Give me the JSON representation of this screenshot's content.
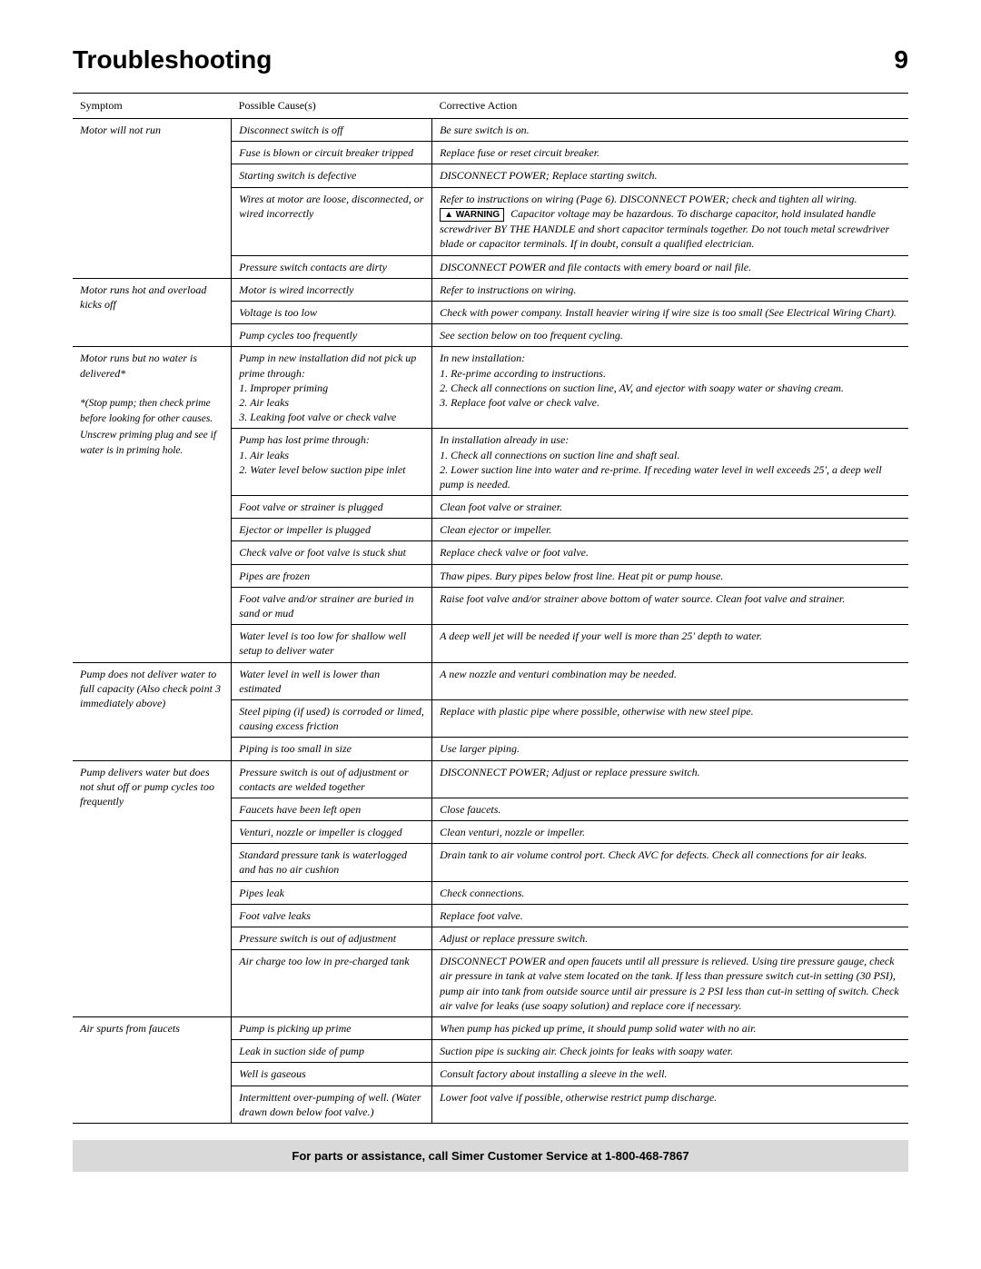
{
  "page": {
    "title": "Troubleshooting",
    "number": "9"
  },
  "headers": {
    "symptom": "Symptom",
    "cause": "Possible Cause(s)",
    "action": "Corrective Action"
  },
  "warning_label": "WARNING",
  "footer": "For parts or assistance, call Simer Customer Service at 1-800-468-7867",
  "s1": {
    "symptom": "Motor will not run",
    "r1": {
      "cause": "Disconnect switch is off",
      "action": "Be sure switch is on."
    },
    "r2": {
      "cause": "Fuse is blown or circuit breaker tripped",
      "action": "Replace fuse or reset circuit breaker."
    },
    "r3": {
      "cause": "Starting switch is defective",
      "action": "DISCONNECT POWER; Replace starting switch."
    },
    "r4": {
      "cause": "Wires at motor are loose, disconnected, or wired incorrectly",
      "action_a": "Refer to instructions on wiring (Page 6). DISCONNECT POWER; check and tighten all wiring.",
      "action_b": "Capacitor voltage may be hazardous. To discharge capacitor, hold insulated handle screwdriver BY THE HANDLE and short capacitor terminals together. Do not touch metal screwdriver blade or capacitor terminals. If in doubt, consult a qualified electrician."
    },
    "r5": {
      "cause": "Pressure switch contacts are dirty",
      "action": "DISCONNECT POWER and file contacts with emery board or nail file."
    }
  },
  "s2": {
    "symptom": "Motor runs hot and overload kicks off",
    "r1": {
      "cause": "Motor is wired incorrectly",
      "action": "Refer to instructions on wiring."
    },
    "r2": {
      "cause": "Voltage is too low",
      "action": "Check with power company. Install heavier wiring if wire size is too small (See Electrical Wiring Chart)."
    },
    "r3": {
      "cause": "Pump cycles too frequently",
      "action": "See section below on too frequent cycling."
    }
  },
  "s3": {
    "symptom_a": "Motor runs but no water is delivered*",
    "symptom_b": "*(Stop pump; then check prime before looking for other causes. Unscrew priming plug and see if water is in priming hole.",
    "r1": {
      "cause": "Pump in new installation did not pick up prime through:\n  1. Improper priming\n  2. Air leaks\n  3. Leaking foot valve or check valve",
      "action": "In new installation:\n  1. Re-prime according to instructions.\n  2. Check all connections on suction line, AV, and ejector with soapy water or shaving cream.\n  3. Replace foot valve or check valve."
    },
    "r2": {
      "cause": "Pump has lost prime through:\n  1. Air leaks\n  2. Water level below suction pipe inlet",
      "action": "In installation already in use:\n  1. Check all connections on suction line and shaft seal.\n  2. Lower suction line into water and re-prime. If receding water level in well exceeds 25', a deep well pump is needed."
    },
    "r3": {
      "cause": "Foot valve or strainer is plugged",
      "action": "Clean foot valve or strainer."
    },
    "r4": {
      "cause": "Ejector or impeller is plugged",
      "action": "Clean ejector or impeller."
    },
    "r5": {
      "cause": "Check valve or foot valve is stuck shut",
      "action": "Replace check valve or foot valve."
    },
    "r6": {
      "cause": "Pipes are frozen",
      "action": "Thaw pipes. Bury pipes below frost line. Heat pit or pump house."
    },
    "r7": {
      "cause": "Foot valve and/or strainer are buried in sand or mud",
      "action": "Raise foot valve and/or strainer above bottom of water source. Clean foot valve and strainer."
    },
    "r8": {
      "cause": "Water level is too low for shallow well setup to deliver water",
      "action": "A deep well jet will be needed if your well is more than 25' depth to water."
    }
  },
  "s4": {
    "symptom": "Pump does not deliver water to full capacity (Also check point 3 immediately above)",
    "r1": {
      "cause": "Water level in well is lower than estimated",
      "action": "A new nozzle and venturi combination may be needed."
    },
    "r2": {
      "cause": "Steel piping (if used) is corroded or limed, causing excess friction",
      "action": "Replace with plastic pipe where possible, otherwise with new steel pipe."
    },
    "r3": {
      "cause": "Piping is too small in size",
      "action": "Use larger piping."
    }
  },
  "s5": {
    "symptom": "Pump delivers water but does not shut off or pump cycles too frequently",
    "r1": {
      "cause": "Pressure switch is out of adjustment or contacts are welded together",
      "action": "DISCONNECT POWER; Adjust or replace pressure switch."
    },
    "r2": {
      "cause": "Faucets have been left open",
      "action": "Close faucets."
    },
    "r3": {
      "cause": "Venturi, nozzle or impeller is clogged",
      "action": "Clean venturi, nozzle or impeller."
    },
    "r4": {
      "cause": "Standard pressure tank is waterlogged and has no air cushion",
      "action": "Drain tank to air volume control port. Check AVC for defects. Check all connections for air leaks."
    },
    "r5": {
      "cause": "Pipes leak",
      "action": "Check connections."
    },
    "r6": {
      "cause": "Foot valve leaks",
      "action": "Replace foot valve."
    },
    "r7": {
      "cause": "Pressure switch is out of adjustment",
      "action": "Adjust or replace pressure switch."
    },
    "r8": {
      "cause": "Air charge too low in pre-charged tank",
      "action": "DISCONNECT POWER and open faucets until all pressure is relieved. Using tire pressure gauge, check air pressure in tank at valve stem located on the tank. If less than pressure switch cut-in setting (30 PSI), pump air into tank from outside source until air pressure is 2 PSI less than cut-in setting of switch. Check air valve for leaks (use soapy solution) and replace core if necessary."
    }
  },
  "s6": {
    "symptom": "Air spurts from faucets",
    "r1": {
      "cause": "Pump is picking up prime",
      "action": "When pump has picked up prime, it should pump solid water with no air."
    },
    "r2": {
      "cause": "Leak in suction side of pump",
      "action": "Suction pipe is sucking air. Check joints for leaks with soapy water."
    },
    "r3": {
      "cause": "Well is gaseous",
      "action": "Consult factory about installing a sleeve in the well."
    },
    "r4": {
      "cause": "Intermittent over-pumping of well. (Water drawn down below foot valve.)",
      "action": "Lower foot valve if possible, otherwise restrict pump discharge."
    }
  }
}
